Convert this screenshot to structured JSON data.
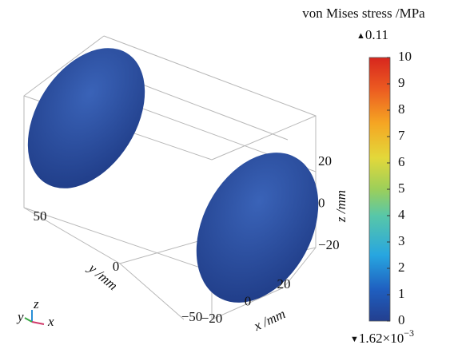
{
  "chart_data": {
    "type": "surface3d",
    "colorbar": {
      "title": "von Mises stress /MPa",
      "max_label": "0.11",
      "min_label": {
        "mantissa": "1.62×10",
        "exponent": "−3"
      },
      "lim": [
        0,
        10
      ],
      "ticks": [
        0,
        1,
        2,
        3,
        4,
        5,
        6,
        7,
        8,
        9,
        10
      ]
    },
    "xaxis": {
      "label": "x /mm",
      "lim": [
        -20,
        20
      ],
      "ticks": [
        {
          "value": -20,
          "label": "−20"
        },
        0,
        20
      ]
    },
    "yaxis": {
      "label": "y /mm",
      "lim": [
        -50,
        50
      ],
      "ticks": [
        {
          "value": -50,
          "label": "−50"
        },
        0,
        50
      ]
    },
    "zaxis": {
      "label": "z /mm",
      "lim": [
        -20,
        20
      ],
      "ticks": [
        {
          "value": -20,
          "label": "−20"
        },
        0,
        20
      ]
    },
    "triad": [
      "y",
      "z",
      "x"
    ]
  }
}
